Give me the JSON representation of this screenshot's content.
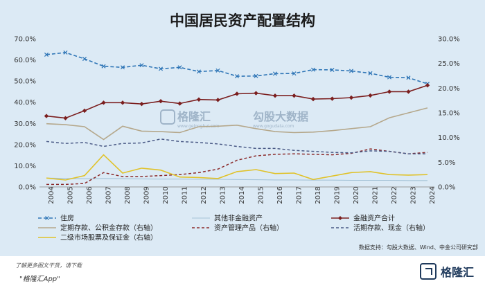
{
  "chart_data": {
    "type": "line",
    "title": "中国居民资产配置结构",
    "categories": [
      "2004",
      "2005",
      "2006",
      "2007",
      "2008",
      "2009",
      "2010",
      "2011",
      "2012",
      "2013",
      "2014",
      "2015",
      "2016",
      "2017",
      "2018",
      "2019",
      "2020",
      "2021",
      "2022",
      "2023",
      "2024"
    ],
    "y_left": {
      "ylim": [
        0,
        70
      ],
      "ticks": [
        "0.0%",
        "10.0%",
        "20.0%",
        "30.0%",
        "40.0%",
        "50.0%",
        "60.0%",
        "70.0%"
      ]
    },
    "y_right": {
      "ylim": [
        0,
        30
      ],
      "ticks": [
        "0.0%",
        "5.0%",
        "10.0%",
        "15.0%",
        "20.0%",
        "25.0%",
        "30.0%"
      ]
    },
    "grid": false,
    "legend_position": "bottom",
    "series": [
      {
        "name": "住房",
        "axis": "left",
        "color": "#2e75b6",
        "style": "dashed-x",
        "values": [
          62.5,
          63.5,
          60.5,
          57,
          56.5,
          57.5,
          55.8,
          56.5,
          54.5,
          55,
          52.3,
          52.4,
          53.5,
          53.6,
          55.4,
          55.3,
          54.8,
          53.7,
          51.8,
          51.6,
          48.7
        ]
      },
      {
        "name": "其他非金融资产",
        "axis": "left",
        "color": "#a6c4d8",
        "style": "solid-thin",
        "values": [
          4.2,
          4.0,
          3.9,
          4.0,
          3.9,
          3.8,
          3.7,
          3.7,
          3.6,
          3.6,
          3.5,
          3.4,
          3.3,
          3.3,
          3.2,
          3.2,
          3.1,
          3.1,
          3.1,
          3.0,
          3.0
        ]
      },
      {
        "name": "金融资产合计",
        "axis": "left",
        "color": "#7b1f1f",
        "style": "diamond",
        "values": [
          33.5,
          32.5,
          36,
          39.8,
          39.8,
          39.2,
          40.5,
          39.4,
          41.3,
          41.1,
          44,
          44.3,
          43.1,
          43.1,
          41.5,
          41.7,
          42.2,
          43.2,
          45,
          45,
          48
        ]
      },
      {
        "name": "定期存款、公积金存款（右轴）",
        "axis": "right",
        "color": "#b5a88c",
        "style": "solid",
        "values": [
          12.8,
          12.6,
          12.2,
          9.6,
          12.3,
          11.3,
          11.2,
          11.0,
          12.2,
          12.3,
          12.5,
          11.8,
          11.2,
          11.0,
          11.1,
          11.4,
          11.8,
          12.2,
          14.0,
          15.0,
          16.0
        ]
      },
      {
        "name": "资产管理产品（右轴）",
        "axis": "right",
        "color": "#8b2b2b",
        "style": "dashed",
        "values": [
          0.5,
          0.5,
          0.7,
          2.9,
          2.1,
          2.1,
          2.3,
          2.5,
          2.9,
          3.6,
          5.4,
          6.3,
          6.6,
          6.7,
          6.6,
          6.5,
          6.8,
          7.7,
          7.2,
          6.7,
          7.0
        ]
      },
      {
        "name": "活期存款、现金（右轴）",
        "axis": "right",
        "color": "#4a5a86",
        "style": "dashed",
        "values": [
          9.2,
          8.8,
          9.0,
          8.2,
          8.8,
          8.9,
          9.7,
          9.2,
          9.0,
          8.7,
          8.2,
          7.8,
          7.8,
          7.4,
          7.2,
          7.0,
          6.9,
          7.3,
          7.2,
          6.7,
          6.7
        ]
      },
      {
        "name": "二级市场股票及保证金（右轴）",
        "axis": "right",
        "color": "#e0c229",
        "style": "solid",
        "values": [
          1.8,
          1.4,
          2.3,
          6.5,
          2.8,
          3.8,
          3.4,
          2.0,
          1.9,
          1.7,
          3.1,
          3.5,
          2.7,
          2.8,
          1.5,
          2.2,
          2.9,
          3.1,
          2.5,
          2.4,
          2.5
        ]
      }
    ],
    "source": "数据支持：勾股大数据、Wind、中金公司研究部"
  },
  "watermarks": [
    "格隆汇",
    "www.gelonghui.com",
    "勾股大数据",
    "www.gogudata.com"
  ],
  "footer": {
    "note_line1": "了解更多图文干货，请下载",
    "note_line2": "\"格隆汇App\"",
    "brand": "格隆汇",
    "brand_icon": "gelonghui-logo-icon"
  }
}
